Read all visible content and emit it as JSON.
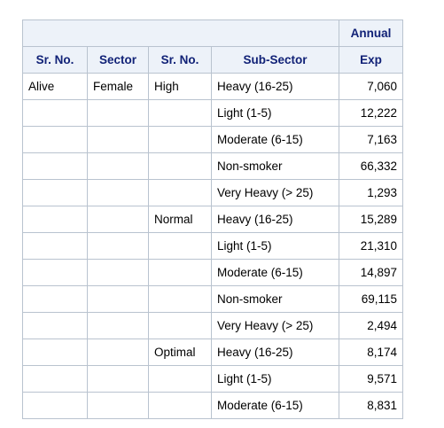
{
  "table": {
    "header_top_right": "Annual",
    "columns": [
      "Sr. No.",
      "Sector",
      "Sr. No.",
      "Sub-Sector",
      "Exp"
    ],
    "rows": [
      {
        "c1": "Alive",
        "c2": "Female",
        "c3": "High",
        "c4": "Heavy (16-25)",
        "c5": "7,060"
      },
      {
        "c1": "",
        "c2": "",
        "c3": "",
        "c4": "Light (1-5)",
        "c5": "12,222"
      },
      {
        "c1": "",
        "c2": "",
        "c3": "",
        "c4": "Moderate (6-15)",
        "c5": "7,163"
      },
      {
        "c1": "",
        "c2": "",
        "c3": "",
        "c4": "Non-smoker",
        "c5": "66,332"
      },
      {
        "c1": "",
        "c2": "",
        "c3": "",
        "c4": "Very Heavy (> 25)",
        "c5": "1,293"
      },
      {
        "c1": "",
        "c2": "",
        "c3": "Normal",
        "c4": "Heavy (16-25)",
        "c5": "15,289"
      },
      {
        "c1": "",
        "c2": "",
        "c3": "",
        "c4": "Light (1-5)",
        "c5": "21,310"
      },
      {
        "c1": "",
        "c2": "",
        "c3": "",
        "c4": "Moderate (6-15)",
        "c5": "14,897"
      },
      {
        "c1": "",
        "c2": "",
        "c3": "",
        "c4": "Non-smoker",
        "c5": "69,115"
      },
      {
        "c1": "",
        "c2": "",
        "c3": "",
        "c4": "Very Heavy (> 25)",
        "c5": "2,494"
      },
      {
        "c1": "",
        "c2": "",
        "c3": "Optimal",
        "c4": "Heavy (16-25)",
        "c5": "8,174"
      },
      {
        "c1": "",
        "c2": "",
        "c3": "",
        "c4": "Light (1-5)",
        "c5": "9,571"
      },
      {
        "c1": "",
        "c2": "",
        "c3": "",
        "c4": "Moderate (6-15)",
        "c5": "8,831"
      }
    ]
  }
}
